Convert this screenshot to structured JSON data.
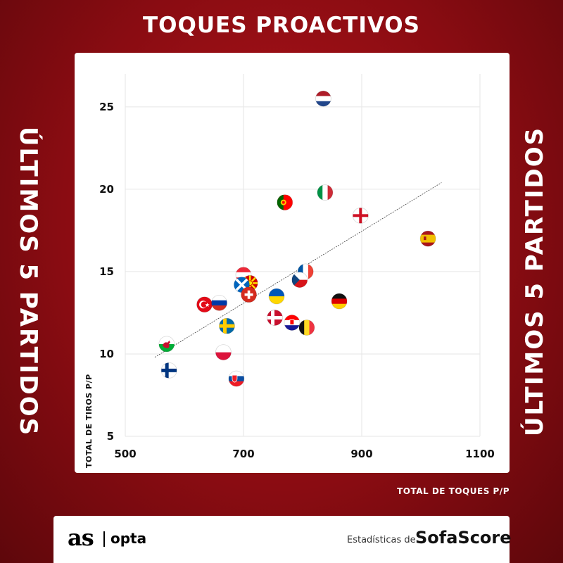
{
  "header": {
    "title": "TOQUES PROACTIVOS"
  },
  "side": {
    "left": "ÚLTIMOS 5 PARTIDOS",
    "right": "ÚLTIMOS 5 PARTIDOS"
  },
  "footer": {
    "brand_as": "as",
    "brand_opta": "opta",
    "stats_prefix": "Estadísticas de",
    "stats_brand": "SofaScore"
  },
  "chart_data": {
    "type": "scatter",
    "title": "TOQUES PROACTIVOS",
    "xlabel": "TOTAL DE TOQUES P/P",
    "ylabel": "TOTAL DE TIROS P/P",
    "xlim": [
      500,
      1100
    ],
    "ylim": [
      5,
      27
    ],
    "x_ticks": [
      500,
      700,
      900,
      1100
    ],
    "y_ticks": [
      5,
      10,
      15,
      20,
      25
    ],
    "grid": true,
    "trendline": {
      "x": [
        550,
        1035
      ],
      "y": [
        9.8,
        20.4
      ]
    },
    "points": [
      {
        "team": "Netherlands",
        "flag": "netherlands-flag",
        "x": 835,
        "y": 25.5
      },
      {
        "team": "Italy",
        "flag": "italy-flag",
        "x": 838,
        "y": 19.8
      },
      {
        "team": "Portugal",
        "flag": "portugal-flag",
        "x": 770,
        "y": 19.2
      },
      {
        "team": "England",
        "flag": "england-flag",
        "x": 898,
        "y": 18.4
      },
      {
        "team": "Spain",
        "flag": "spain-flag",
        "x": 1012,
        "y": 17.0
      },
      {
        "team": "Austria",
        "flag": "austria-flag",
        "x": 700,
        "y": 14.8
      },
      {
        "team": "North Macedonia",
        "flag": "north-macedonia-flag",
        "x": 711,
        "y": 14.3
      },
      {
        "team": "Scotland",
        "flag": "scotland-flag",
        "x": 697,
        "y": 14.2
      },
      {
        "team": "Switzerland",
        "flag": "switzerland-flag",
        "x": 709,
        "y": 13.6
      },
      {
        "team": "France",
        "flag": "france-flag",
        "x": 805,
        "y": 15.0
      },
      {
        "team": "Czech Republic",
        "flag": "czech-republic-flag",
        "x": 795,
        "y": 14.5
      },
      {
        "team": "Ukraine",
        "flag": "ukraine-flag",
        "x": 756,
        "y": 13.5
      },
      {
        "team": "Germany",
        "flag": "germany-flag",
        "x": 862,
        "y": 13.2
      },
      {
        "team": "Turkey",
        "flag": "turkey-flag",
        "x": 634,
        "y": 13.0
      },
      {
        "team": "Russia",
        "flag": "russia-flag",
        "x": 659,
        "y": 13.1
      },
      {
        "team": "Denmark",
        "flag": "denmark-flag",
        "x": 753,
        "y": 12.2
      },
      {
        "team": "Croatia",
        "flag": "croatia-flag",
        "x": 782,
        "y": 11.9
      },
      {
        "team": "Belgium",
        "flag": "belgium-flag",
        "x": 807,
        "y": 11.6
      },
      {
        "team": "Sweden",
        "flag": "sweden-flag",
        "x": 672,
        "y": 11.7
      },
      {
        "team": "Wales",
        "flag": "wales-flag",
        "x": 570,
        "y": 10.6
      },
      {
        "team": "Poland",
        "flag": "poland-flag",
        "x": 666,
        "y": 10.1
      },
      {
        "team": "Finland",
        "flag": "finland-flag",
        "x": 574,
        "y": 9.0
      },
      {
        "team": "Slovakia",
        "flag": "slovakia-flag",
        "x": 688,
        "y": 8.5
      }
    ]
  }
}
